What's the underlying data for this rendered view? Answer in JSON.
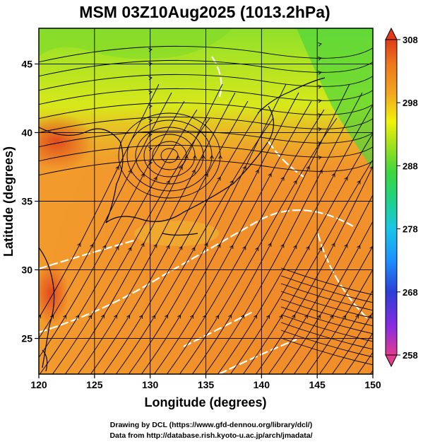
{
  "title": "MSM 03Z10Aug2025 (1013.2hPa)",
  "map": {
    "x_axis_label": "Longitude (degrees)",
    "y_axis_label": "Latitude  (degrees)",
    "lon_range": [
      120,
      150
    ],
    "lat_range": [
      22.4,
      47.6
    ],
    "lon_ticks": [
      "120",
      "125",
      "130",
      "135",
      "140",
      "145",
      "150"
    ],
    "lat_ticks": [
      "25",
      "30",
      "35",
      "40",
      "45"
    ],
    "grid": true,
    "field": "temperature (K)",
    "vectors": "wind streamlines"
  },
  "colorbar": {
    "min": 258,
    "max": 308,
    "ticks": [
      "308",
      "298",
      "288",
      "278",
      "268",
      "258"
    ],
    "colors": [
      "#e23c8e",
      "#8a2be2",
      "#2b3fd6",
      "#1e90ff",
      "#19c6e6",
      "#22d27e",
      "#3fd63f",
      "#9be01e",
      "#f2f20a",
      "#f2a51f",
      "#ee7a1c",
      "#e03a1a"
    ]
  },
  "credits": {
    "line1": "Drawing by DCL (https://www.gfd-dennou.org/library/dcl/)",
    "line2": "Data from http://database.rish.kyoto-u.ac.jp/arch/jmadata/"
  }
}
